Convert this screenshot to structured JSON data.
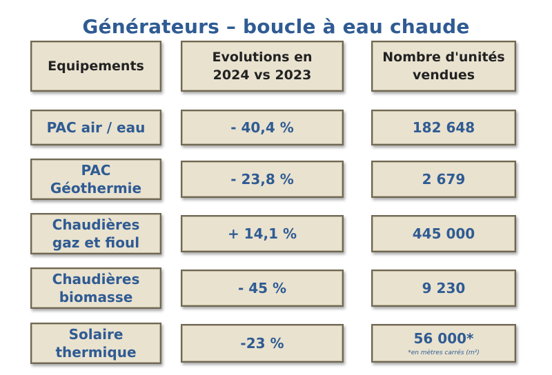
{
  "title": "Générateurs – boucle à eau chaude",
  "headers": {
    "equipements": "Equipements",
    "evolutions_l1": "Evolutions en",
    "evolutions_l2": "2024 vs 2023",
    "nombre_l1": "Nombre d'unités",
    "nombre_l2": "vendues"
  },
  "rows": [
    {
      "eq_l1": "PAC air / eau",
      "eq_l2": "",
      "evolution": "- 40,4 %",
      "units": "182 648"
    },
    {
      "eq_l1": "PAC",
      "eq_l2": "Géothermie",
      "evolution": "- 23,8 %",
      "units": "2 679"
    },
    {
      "eq_l1": "Chaudières",
      "eq_l2": "gaz et fioul",
      "evolution": "+ 14,1 %",
      "units": "445 000"
    },
    {
      "eq_l1": "Chaudières",
      "eq_l2": "biomasse",
      "evolution": "- 45 %",
      "units": "9 230"
    },
    {
      "eq_l1": "Solaire",
      "eq_l2": "thermique",
      "evolution": "-23 %",
      "units": "56 000*",
      "note": "*en mètres carrés (m²)"
    }
  ]
}
